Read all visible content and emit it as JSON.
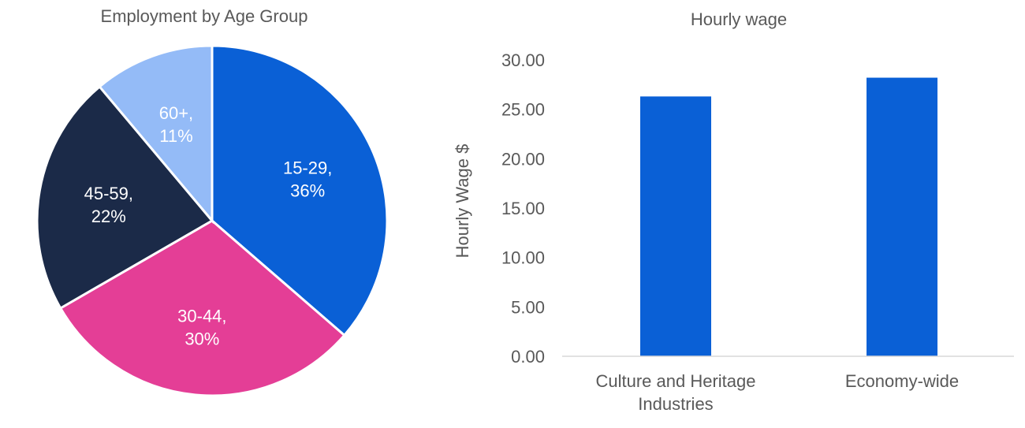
{
  "chart_data": [
    {
      "type": "pie",
      "title": "Employment by Age Group",
      "slices": [
        {
          "label": "15-29",
          "value": 36,
          "value_label": "36%",
          "color": "#0a60d6"
        },
        {
          "label": "30-44",
          "value": 30,
          "value_label": "30%",
          "color": "#e43e96"
        },
        {
          "label": "45-59",
          "value": 22,
          "value_label": "22%",
          "color": "#1b2a48"
        },
        {
          "label": "60+",
          "value": 11,
          "value_label": "11%",
          "color": "#94bbf7"
        }
      ],
      "start_angle_deg": 0,
      "direction": "clockwise"
    },
    {
      "type": "bar",
      "title": "Hourly wage",
      "categories": [
        [
          "Culture and Heritage",
          "Industries"
        ],
        [
          "Economy-wide"
        ]
      ],
      "values": [
        26.3,
        28.2
      ],
      "ylabel": "Hourly Wage $",
      "xlabel": "",
      "ylim": [
        0,
        30
      ],
      "yticks": [
        "0.00",
        "5.00",
        "10.00",
        "15.00",
        "20.00",
        "25.00",
        "30.00"
      ],
      "bar_color": "#0a60d6",
      "grid": false
    }
  ]
}
